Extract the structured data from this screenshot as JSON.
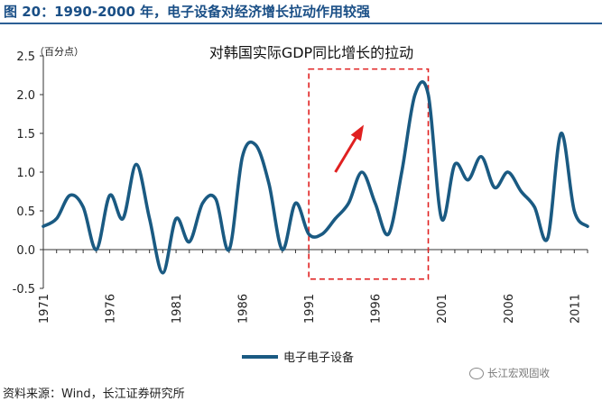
{
  "figure_title": "图 20：1990-2000 年，电子设备对经济增长拉动作用较强",
  "source": "资料来源：Wind，长江证券研究所",
  "watermark": "长江宏观固收",
  "colors": {
    "title": "#1a4f86",
    "series": "#1a5a82",
    "highlight": "#e02020"
  },
  "chart_data": {
    "type": "line",
    "title": "对韩国实际GDP同比增长的拉动",
    "unit_label": "（百分点）",
    "xlabel": "",
    "ylabel": "",
    "ylim": [
      -0.5,
      2.5
    ],
    "yticks": [
      "-0.5",
      "0.0",
      "0.5",
      "1.0",
      "1.5",
      "2.0",
      "2.5"
    ],
    "xticks": [
      "1971",
      "1976",
      "1981",
      "1986",
      "1991",
      "1996",
      "2001",
      "2006",
      "2011"
    ],
    "grid": false,
    "legend_position": "bottom-center",
    "series": [
      {
        "name": "电子电子设备",
        "x": [
          1971,
          1972,
          1973,
          1974,
          1975,
          1976,
          1977,
          1978,
          1979,
          1980,
          1981,
          1982,
          1983,
          1984,
          1985,
          1986,
          1987,
          1988,
          1989,
          1990,
          1991,
          1992,
          1993,
          1994,
          1995,
          1996,
          1997,
          1998,
          1999,
          2000,
          2001,
          2002,
          2003,
          2004,
          2005,
          2006,
          2007,
          2008,
          2009,
          2010,
          2011,
          2012
        ],
        "values": [
          0.3,
          0.4,
          0.7,
          0.55,
          0.0,
          0.7,
          0.4,
          1.1,
          0.4,
          -0.3,
          0.4,
          0.1,
          0.6,
          0.65,
          0.0,
          1.2,
          1.35,
          0.85,
          0.0,
          0.6,
          0.2,
          0.2,
          0.4,
          0.6,
          1.0,
          0.6,
          0.2,
          1.0,
          2.0,
          2.0,
          0.4,
          1.1,
          0.9,
          1.2,
          0.8,
          1.0,
          0.75,
          0.55,
          0.15,
          1.5,
          0.5,
          0.3
        ]
      }
    ],
    "annotations": [
      {
        "type": "dashed-box",
        "x_from": 1991,
        "x_to": 2000,
        "y_from": -0.38,
        "y_to": 2.33
      },
      {
        "type": "arrow",
        "x_from": 1993,
        "y_from": 1.0,
        "x_to": 1995,
        "y_to": 1.57
      }
    ]
  }
}
